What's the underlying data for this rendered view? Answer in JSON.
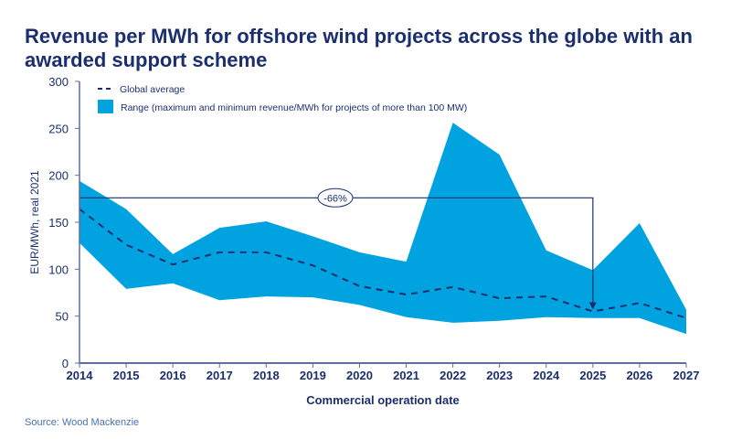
{
  "chart_data": {
    "type": "area",
    "title": "Revenue per MWh for offshore wind projects across the globe with an awarded support scheme",
    "xlabel": "Commercial operation date",
    "ylabel": "EUR/MWh, real 2021",
    "ylim": [
      0,
      300
    ],
    "yticks": [
      0,
      50,
      100,
      150,
      200,
      250,
      300
    ],
    "categories": [
      "2014",
      "2015",
      "2016",
      "2017",
      "2018",
      "2019",
      "2020",
      "2021",
      "2022",
      "2023",
      "2024",
      "2025",
      "2026",
      "2027"
    ],
    "series": [
      {
        "name": "Global average",
        "style": "dashed",
        "color": "#1b2f6e",
        "values": [
          164,
          126,
          105,
          118,
          118,
          104,
          82,
          73,
          81,
          69,
          71,
          55,
          64,
          48
        ]
      },
      {
        "name": "Range (maximum and minimum revenue/MWh  for projects of more than 100 MW)",
        "style": "range",
        "color": "#00a3e0",
        "max": [
          194,
          164,
          116,
          144,
          151,
          135,
          118,
          108,
          256,
          222,
          120,
          99,
          149,
          57
        ],
        "min": [
          128,
          79,
          85,
          67,
          71,
          70,
          62,
          49,
          43,
          45,
          49,
          48,
          48,
          31
        ]
      }
    ],
    "annotation": {
      "label": "-66%",
      "from_year": "2014",
      "to_year": "2025",
      "level": 176
    },
    "legend_position": "top-left",
    "grid": false
  },
  "source": "Source: Wood Mackenzie"
}
